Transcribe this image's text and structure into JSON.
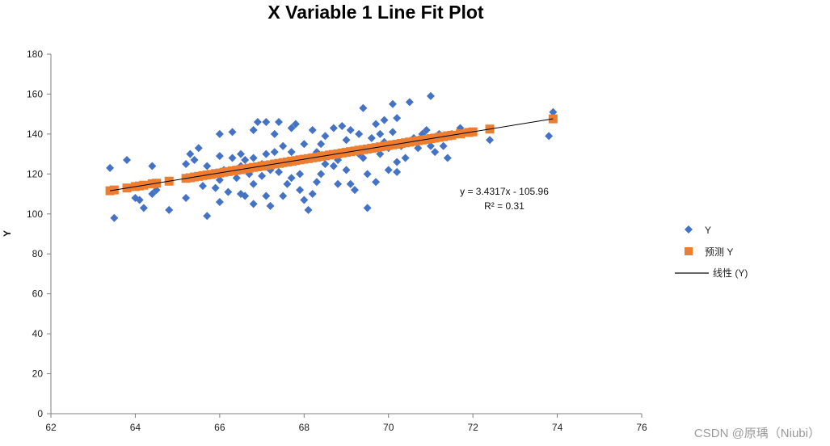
{
  "chart_data": {
    "type": "scatter",
    "title": "X Variable 1 Line Fit  Plot",
    "xlabel": "",
    "ylabel": "Y",
    "xlim": [
      62,
      76
    ],
    "ylim": [
      0,
      180
    ],
    "x_ticks": [
      "62",
      "64",
      "66",
      "68",
      "70",
      "72",
      "74",
      "76"
    ],
    "y_ticks": [
      "0",
      "20",
      "40",
      "60",
      "80",
      "100",
      "120",
      "140",
      "160",
      "180"
    ],
    "trendline": {
      "name": "线性 (Y)",
      "slope": 3.4317,
      "intercept": -105.96,
      "equation": "y = 3.4317x - 105.96",
      "r2_label": "R² = 0.31",
      "color": "#000000"
    },
    "legend": {
      "position": "right",
      "entries": [
        "Y",
        "预测 Y",
        "线性 (Y)"
      ]
    },
    "series": [
      {
        "name": "Y",
        "marker": "diamond",
        "color": "#4472C4",
        "points": [
          [
            63.4,
            123
          ],
          [
            63.5,
            98
          ],
          [
            63.8,
            127
          ],
          [
            64.0,
            108
          ],
          [
            64.1,
            107
          ],
          [
            64.2,
            103
          ],
          [
            64.4,
            110
          ],
          [
            64.4,
            124
          ],
          [
            64.5,
            112
          ],
          [
            64.8,
            102
          ],
          [
            65.2,
            108
          ],
          [
            65.2,
            125
          ],
          [
            65.3,
            130
          ],
          [
            65.4,
            127
          ],
          [
            65.5,
            119
          ],
          [
            65.5,
            133
          ],
          [
            65.6,
            114
          ],
          [
            65.7,
            99
          ],
          [
            65.7,
            124
          ],
          [
            65.8,
            120
          ],
          [
            65.9,
            113
          ],
          [
            66.0,
            106
          ],
          [
            66.0,
            129
          ],
          [
            66.0,
            117
          ],
          [
            66.0,
            140
          ],
          [
            66.1,
            122
          ],
          [
            66.2,
            111
          ],
          [
            66.3,
            141
          ],
          [
            66.3,
            128
          ],
          [
            66.4,
            118
          ],
          [
            66.5,
            130
          ],
          [
            66.5,
            124
          ],
          [
            66.5,
            110
          ],
          [
            66.6,
            109
          ],
          [
            66.6,
            127
          ],
          [
            66.7,
            120
          ],
          [
            66.8,
            105
          ],
          [
            66.8,
            115
          ],
          [
            66.8,
            142
          ],
          [
            66.8,
            128
          ],
          [
            66.9,
            146
          ],
          [
            67.0,
            125
          ],
          [
            67.0,
            119
          ],
          [
            67.1,
            146
          ],
          [
            67.1,
            130
          ],
          [
            67.1,
            109
          ],
          [
            67.2,
            122
          ],
          [
            67.2,
            104
          ],
          [
            67.3,
            131
          ],
          [
            67.3,
            140
          ],
          [
            67.4,
            146
          ],
          [
            67.4,
            121
          ],
          [
            67.5,
            134
          ],
          [
            67.5,
            109
          ],
          [
            67.5,
            125
          ],
          [
            67.6,
            115
          ],
          [
            67.7,
            118
          ],
          [
            67.7,
            131
          ],
          [
            67.7,
            143
          ],
          [
            67.8,
            145
          ],
          [
            67.8,
            126
          ],
          [
            67.9,
            112
          ],
          [
            67.9,
            120
          ],
          [
            68.0,
            107
          ],
          [
            68.0,
            135
          ],
          [
            68.1,
            102
          ],
          [
            68.1,
            128
          ],
          [
            68.2,
            142
          ],
          [
            68.2,
            110
          ],
          [
            68.3,
            131
          ],
          [
            68.3,
            116
          ],
          [
            68.4,
            135
          ],
          [
            68.4,
            120
          ],
          [
            68.5,
            139
          ],
          [
            68.5,
            125
          ],
          [
            68.6,
            130
          ],
          [
            68.7,
            124
          ],
          [
            68.7,
            143
          ],
          [
            68.8,
            115
          ],
          [
            68.8,
            127
          ],
          [
            68.9,
            144
          ],
          [
            68.9,
            131
          ],
          [
            69.0,
            137
          ],
          [
            69.0,
            122
          ],
          [
            69.1,
            115
          ],
          [
            69.1,
            142
          ],
          [
            69.2,
            112
          ],
          [
            69.3,
            130
          ],
          [
            69.3,
            140
          ],
          [
            69.4,
            153
          ],
          [
            69.4,
            128
          ],
          [
            69.5,
            120
          ],
          [
            69.5,
            103
          ],
          [
            69.6,
            138
          ],
          [
            69.7,
            145
          ],
          [
            69.7,
            116
          ],
          [
            69.8,
            140
          ],
          [
            69.8,
            130
          ],
          [
            69.9,
            147
          ],
          [
            69.9,
            136
          ],
          [
            70.0,
            133
          ],
          [
            70.0,
            122
          ],
          [
            70.1,
            155
          ],
          [
            70.1,
            141
          ],
          [
            70.2,
            148
          ],
          [
            70.2,
            126
          ],
          [
            70.2,
            121
          ],
          [
            70.3,
            134
          ],
          [
            70.4,
            128
          ],
          [
            70.5,
            156
          ],
          [
            70.6,
            138
          ],
          [
            70.7,
            133
          ],
          [
            70.8,
            140
          ],
          [
            70.9,
            142
          ],
          [
            71.0,
            134
          ],
          [
            71.0,
            159
          ],
          [
            71.1,
            131
          ],
          [
            71.2,
            140
          ],
          [
            71.3,
            134
          ],
          [
            71.4,
            128
          ],
          [
            71.5,
            140
          ],
          [
            71.7,
            143
          ],
          [
            72.4,
            137
          ],
          [
            73.8,
            139
          ],
          [
            73.9,
            151
          ]
        ]
      },
      {
        "name": "预测 Y",
        "marker": "square",
        "color": "#ED7D31",
        "points": [
          [
            63.4,
            111.6
          ],
          [
            63.5,
            112.0
          ],
          [
            63.8,
            113.0
          ],
          [
            64.0,
            113.7
          ],
          [
            64.1,
            114.0
          ],
          [
            64.2,
            114.4
          ],
          [
            64.4,
            115.1
          ],
          [
            64.5,
            115.4
          ],
          [
            64.8,
            116.4
          ],
          [
            65.2,
            117.8
          ],
          [
            65.3,
            118.1
          ],
          [
            65.4,
            118.5
          ],
          [
            65.5,
            118.8
          ],
          [
            65.6,
            119.2
          ],
          [
            65.7,
            119.5
          ],
          [
            65.8,
            119.8
          ],
          [
            65.9,
            120.2
          ],
          [
            66.0,
            120.5
          ],
          [
            66.1,
            120.9
          ],
          [
            66.2,
            121.2
          ],
          [
            66.3,
            121.6
          ],
          [
            66.4,
            121.9
          ],
          [
            66.5,
            122.2
          ],
          [
            66.6,
            122.6
          ],
          [
            66.7,
            122.9
          ],
          [
            66.8,
            123.3
          ],
          [
            66.9,
            123.6
          ],
          [
            67.0,
            124.0
          ],
          [
            67.1,
            124.3
          ],
          [
            67.2,
            124.6
          ],
          [
            67.3,
            125.0
          ],
          [
            67.4,
            125.3
          ],
          [
            67.5,
            125.7
          ],
          [
            67.6,
            126.0
          ],
          [
            67.7,
            126.4
          ],
          [
            67.8,
            126.7
          ],
          [
            67.9,
            127.1
          ],
          [
            68.0,
            127.4
          ],
          [
            68.1,
            127.7
          ],
          [
            68.2,
            128.1
          ],
          [
            68.3,
            128.4
          ],
          [
            68.4,
            128.8
          ],
          [
            68.5,
            129.1
          ],
          [
            68.6,
            129.5
          ],
          [
            68.7,
            129.8
          ],
          [
            68.8,
            130.1
          ],
          [
            68.9,
            130.5
          ],
          [
            69.0,
            130.8
          ],
          [
            69.1,
            131.2
          ],
          [
            69.2,
            131.5
          ],
          [
            69.3,
            131.9
          ],
          [
            69.4,
            132.2
          ],
          [
            69.5,
            132.5
          ],
          [
            69.6,
            132.9
          ],
          [
            69.7,
            133.2
          ],
          [
            69.8,
            133.6
          ],
          [
            69.9,
            133.9
          ],
          [
            70.0,
            134.3
          ],
          [
            70.1,
            134.6
          ],
          [
            70.2,
            134.9
          ],
          [
            70.3,
            135.3
          ],
          [
            70.4,
            135.6
          ],
          [
            70.5,
            136.0
          ],
          [
            70.6,
            136.3
          ],
          [
            70.7,
            136.7
          ],
          [
            70.8,
            137.0
          ],
          [
            70.9,
            137.3
          ],
          [
            71.0,
            137.7
          ],
          [
            71.1,
            138.0
          ],
          [
            71.2,
            138.4
          ],
          [
            71.3,
            138.7
          ],
          [
            71.4,
            139.1
          ],
          [
            71.5,
            139.4
          ],
          [
            71.7,
            140.1
          ],
          [
            71.9,
            140.8
          ],
          [
            72.0,
            141.1
          ],
          [
            72.4,
            142.5
          ],
          [
            73.9,
            147.6
          ]
        ]
      }
    ]
  },
  "watermark": "CSDN @原瑀（Niubi）"
}
